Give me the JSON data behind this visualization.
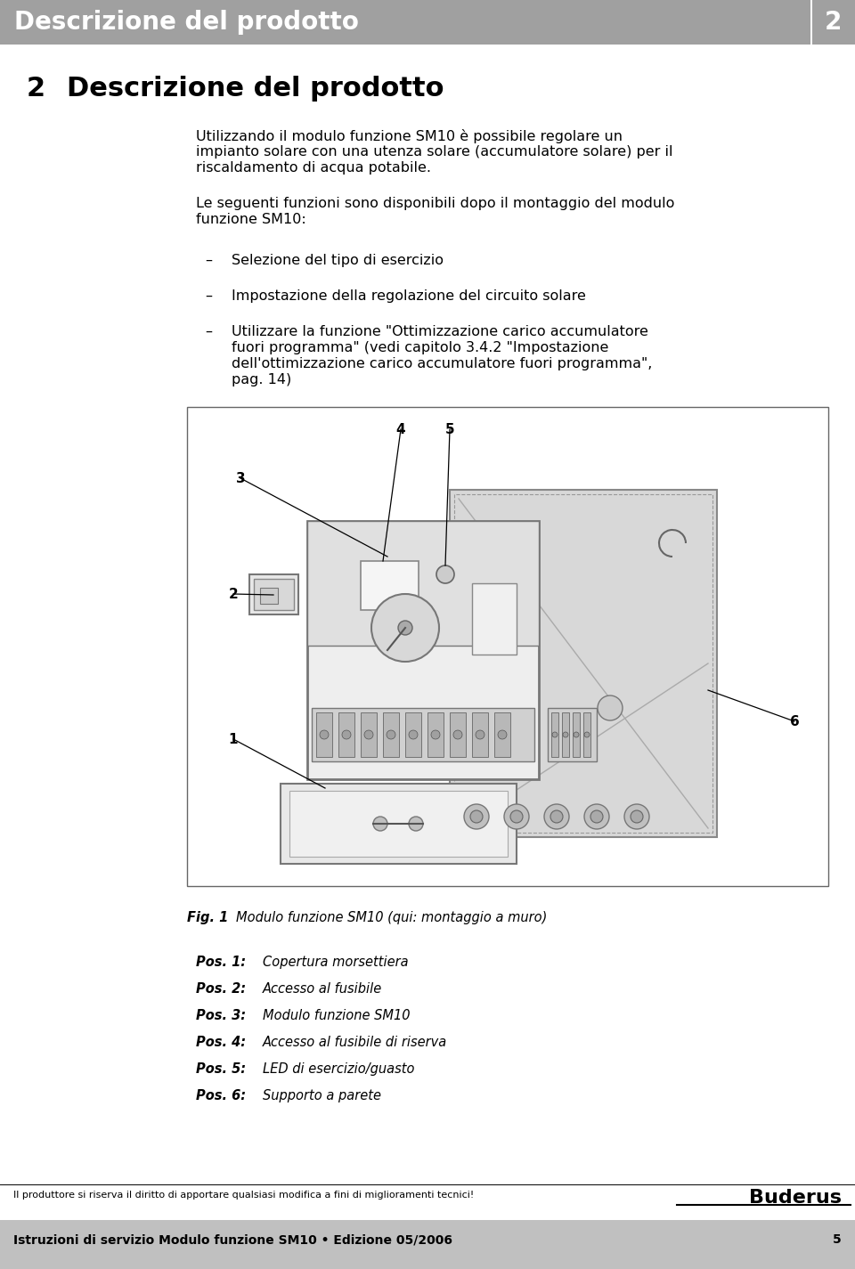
{
  "page_bg": "#ffffff",
  "header_bg": "#a0a0a0",
  "header_text": "Descrizione del prodotto",
  "header_number": "2",
  "header_text_color": "#ffffff",
  "header_font_size": 20,
  "section_number": "2",
  "section_title": "Descrizione del prodotto",
  "section_title_font_size": 22,
  "body_font_size": 11.5,
  "body_text_color": "#000000",
  "para1_line1": "Utilizzando il modulo funzione SM10 è possibile regolare un",
  "para1_line2": "impianto solare con una utenza solare (accumulatore solare) per il",
  "para1_line3": "riscaldamento di acqua potabile.",
  "para2_line1": "Le seguenti funzioni sono disponibili dopo il montaggio del modulo",
  "para2_line2": "funzione SM10:",
  "bullet1": "Selezione del tipo di esercizio",
  "bullet2": "Impostazione della regolazione del circuito solare",
  "bullet3_line1": "Utilizzare la funzione \"Ottimizzazione carico accumulatore",
  "bullet3_line2": "fuori programma\" (vedi capitolo 3.4.2 \"Impostazione",
  "bullet3_line3": "dell'ottimizzazione carico accumulatore fuori programma\",",
  "bullet3_line4": "pag. 14)",
  "fig_label": "Fig. 1",
  "fig_caption_text": "Modulo funzione SM10 (qui: montaggio a muro)",
  "pos_labels": [
    [
      "Pos. 1:",
      "Copertura morsettiera"
    ],
    [
      "Pos. 2:",
      "Accesso al fusibile"
    ],
    [
      "Pos. 3:",
      "Modulo funzione SM10"
    ],
    [
      "Pos. 4:",
      "Accesso al fusibile di riserva"
    ],
    [
      "Pos. 5:",
      "LED di esercizio/guasto"
    ],
    [
      "Pos. 6:",
      "Supporto a parete"
    ]
  ],
  "footer_disclaimer": "Il produttore si riserva il diritto di apportare qualsiasi modifica a fini di miglioramenti tecnici!",
  "footer_brand": "Buderus",
  "footer_footer": "Istruzioni di servizio Modulo funzione SM10 • Edizione 05/2006",
  "footer_page": "5",
  "footer_bg": "#c0c0c0"
}
